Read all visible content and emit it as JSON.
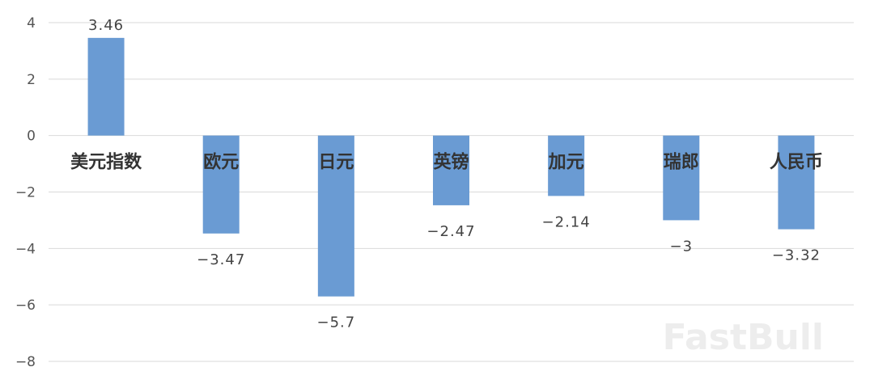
{
  "chart_data": {
    "type": "bar",
    "categories": [
      "美元指数",
      "欧元",
      "日元",
      "英镑",
      "加元",
      "瑞郎",
      "人民币"
    ],
    "values": [
      3.46,
      -3.47,
      -5.7,
      -2.47,
      -2.14,
      -3,
      -3.32
    ],
    "data_labels": [
      "3.46",
      "−3.47",
      "−5.7",
      "−2.47",
      "−2.14",
      "−3",
      "−3.32"
    ],
    "yticks": [
      4,
      2,
      0,
      -2,
      -4,
      -6,
      -8
    ],
    "ytick_labels": [
      "4",
      "2",
      "0",
      "−2",
      "−4",
      "−6",
      "−8"
    ],
    "ylim": [
      -8,
      4
    ],
    "grid": true,
    "bar_color": "#6a9bd3",
    "title": "",
    "xlabel": "",
    "ylabel": ""
  },
  "watermark": "FastBull"
}
